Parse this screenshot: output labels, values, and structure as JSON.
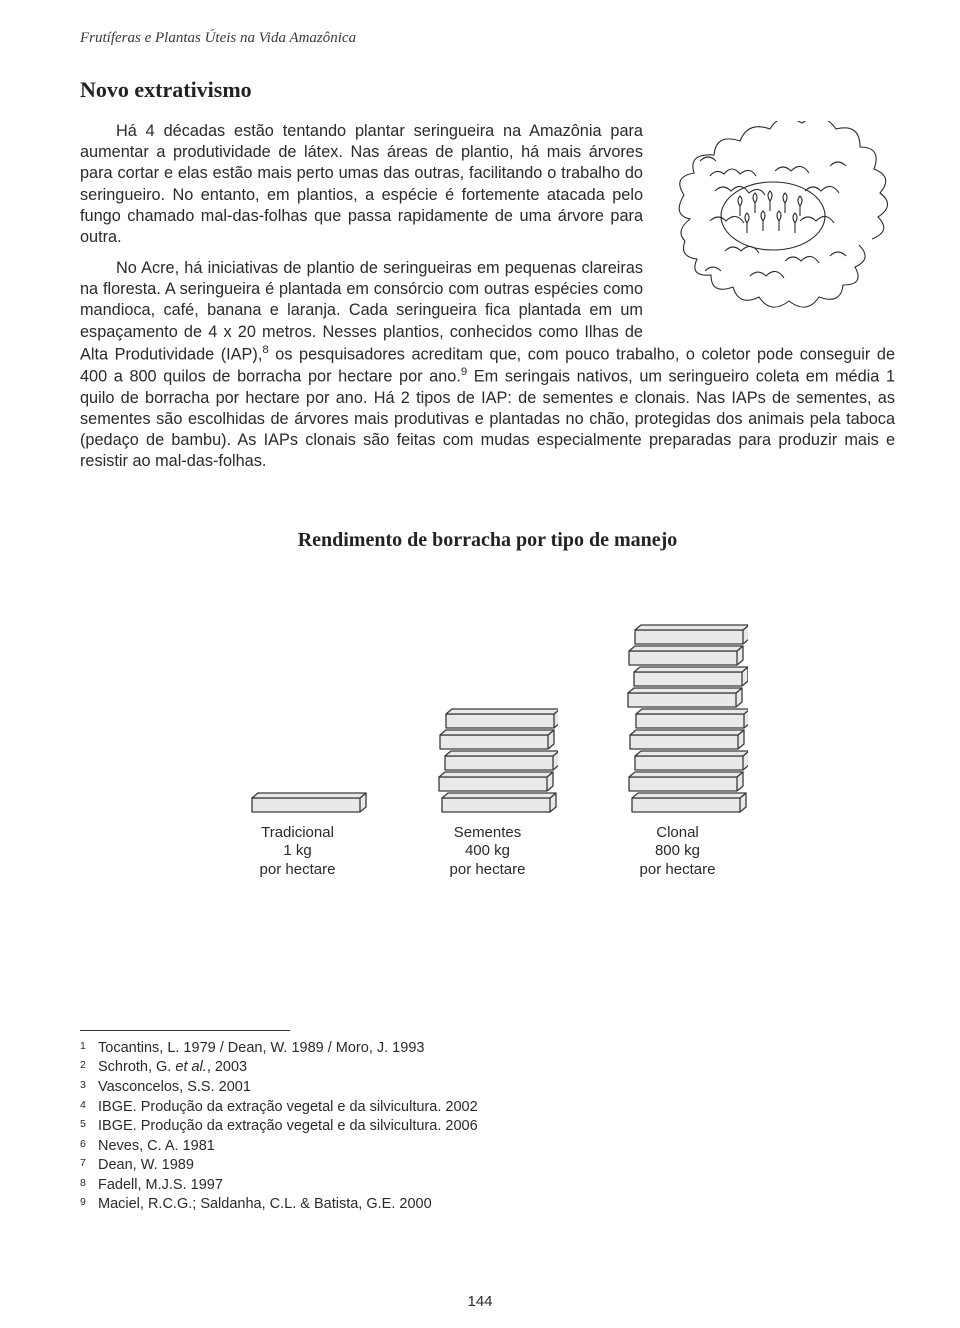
{
  "header": {
    "running": "Frutíferas e Plantas Úteis na Vida Amazônica"
  },
  "section": {
    "title": "Novo extrativismo",
    "para1": "Há 4 décadas estão tentando plantar seringueira na Amazônia para aumentar a produtividade de látex. Nas áreas de plantio, há mais árvores para cortar e elas estão mais perto umas das outras, facilitando o trabalho do seringueiro. No entanto, em plantios, a espécie é fortemente atacada pelo fungo chamado mal-das-folhas que passa rapidamente de uma árvore para outra.",
    "para2_a": "No Acre, há iniciativas de plantio de seringueiras em pequenas clareiras na floresta. A seringueira é plantada em consórcio com outras espécies como mandioca, café, banana e laranja. Cada seringueira fica plantada em um espaçamento de 4 x 20 metros. Nesses plantios, conhecidos como Ilhas de Alta Produtividade (IAP),",
    "para2_b": " os pesquisadores acreditam que, com pouco trabalho, o coletor pode conseguir de 400 a 800 quilos de borracha por hectare por ano.",
    "para2_c": " Em seringais nativos, um seringueiro coleta em média 1 quilo de borracha por hectare por ano. Há 2 tipos de IAP: de sementes e clonais. Nas IAPs de sementes, as sementes são escolhidas de árvores mais produtivas e plantadas no chão, protegidas dos animais pela taboca (pedaço de bambu). As IAPs clonais são feitas com mudas especialmente preparadas para produzir mais e resistir ao mal-das-folhas.",
    "sup8": "8",
    "sup9": "9"
  },
  "chart": {
    "title": "Rendimento de borracha por tipo de manejo",
    "type": "stacked-slab-infographic",
    "slab_width": 108,
    "slab_height": 22,
    "slab_fill": "#e9e9e9",
    "slab_stroke": "#3a3a3a",
    "slab_stroke_width": 1.3,
    "items": [
      {
        "name": "Tradicional",
        "value_label": "1 kg",
        "per": "por hectare",
        "slabs": 1
      },
      {
        "name": "Sementes",
        "value_label": "400 kg",
        "per": "por hectare",
        "slabs": 5
      },
      {
        "name": "Clonal",
        "value_label": "800 kg",
        "per": "por hectare",
        "slabs": 9
      }
    ]
  },
  "footnotes": [
    {
      "n": "1",
      "text": "Tocantins, L. 1979 / Dean, W. 1989 / Moro, J. 1993"
    },
    {
      "n": "2",
      "text": "Schroth, G. ",
      "ital": "et al.",
      "tail": ", 2003"
    },
    {
      "n": "3",
      "text": "Vasconcelos, S.S. 2001"
    },
    {
      "n": "4",
      "text": "IBGE. Produção da extração vegetal e da silvicultura. 2002"
    },
    {
      "n": "5",
      "text": "IBGE. Produção da extração vegetal e da silvicultura. 2006"
    },
    {
      "n": "6",
      "text": "Neves, C. A. 1981"
    },
    {
      "n": "7",
      "text": "Dean, W. 1989"
    },
    {
      "n": "8",
      "text": "Fadell, M.J.S. 1997"
    },
    {
      "n": "9",
      "text": "Maciel, R.C.G.; Saldanha, C.L. & Batista, G.E. 2000"
    }
  ],
  "page_number": "144"
}
